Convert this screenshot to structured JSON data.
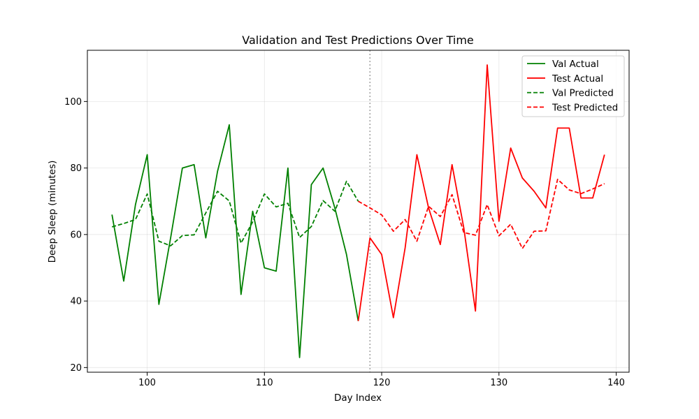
{
  "chart_data": {
    "type": "line",
    "title": "Validation and Test Predictions Over Time",
    "xlabel": "Day Index",
    "ylabel": "Deep Sleep (minutes)",
    "xlim": [
      94.9,
      141.1
    ],
    "ylim": [
      18.6,
      115.4
    ],
    "xticks": [
      100,
      110,
      120,
      130,
      140
    ],
    "yticks": [
      20,
      40,
      60,
      80,
      100
    ],
    "grid": true,
    "legend_position": "top-right",
    "split_line_x": 119,
    "series": [
      {
        "name": "Val Actual",
        "color": "#008000",
        "style": "solid",
        "x": [
          97,
          98,
          99,
          100,
          101,
          102,
          103,
          104,
          105,
          106,
          107,
          108,
          109,
          110,
          111,
          112,
          113,
          114,
          115,
          116,
          117,
          118
        ],
        "y": [
          66,
          46,
          69,
          84,
          39,
          59,
          80,
          81,
          59,
          79,
          93,
          42,
          67,
          50,
          49,
          80,
          23,
          75,
          80,
          68,
          54,
          34
        ]
      },
      {
        "name": "Test Actual",
        "color": "#ff0000",
        "style": "solid",
        "x": [
          118,
          119,
          120,
          121,
          122,
          123,
          124,
          125,
          126,
          127,
          128,
          129,
          130,
          131,
          132,
          133,
          134,
          135,
          136,
          137,
          138,
          139
        ],
        "y": [
          34,
          59,
          54,
          35,
          56,
          84,
          68,
          57,
          81,
          62,
          37,
          111,
          64,
          86,
          77,
          73,
          68,
          92,
          92,
          71,
          71,
          84
        ]
      },
      {
        "name": "Val Predicted",
        "color": "#008000",
        "style": "dashed",
        "x": [
          97,
          98,
          99,
          100,
          101,
          102,
          103,
          104,
          105,
          106,
          107,
          108,
          109,
          110,
          111,
          112,
          113,
          114,
          115,
          116,
          117,
          118
        ],
        "y": [
          62.3,
          63.3,
          64.5,
          72.2,
          58,
          56.6,
          59.7,
          59.9,
          66.5,
          73,
          70.1,
          57.4,
          63.8,
          72.2,
          68.3,
          69.4,
          59.1,
          62.4,
          70.2,
          67,
          76,
          70
        ]
      },
      {
        "name": "Test Predicted",
        "color": "#ff0000",
        "style": "dashed",
        "x": [
          118,
          119,
          120,
          121,
          122,
          123,
          124,
          125,
          126,
          127,
          128,
          129,
          130,
          131,
          132,
          133,
          134,
          135,
          136,
          137,
          138,
          139
        ],
        "y": [
          70,
          68,
          65.9,
          61,
          64.5,
          58,
          68.5,
          65.4,
          72,
          60.6,
          59.8,
          69,
          59.6,
          63.1,
          55.8,
          61,
          61.1,
          76.6,
          73.4,
          72.3,
          73.7,
          75.3
        ]
      }
    ]
  }
}
